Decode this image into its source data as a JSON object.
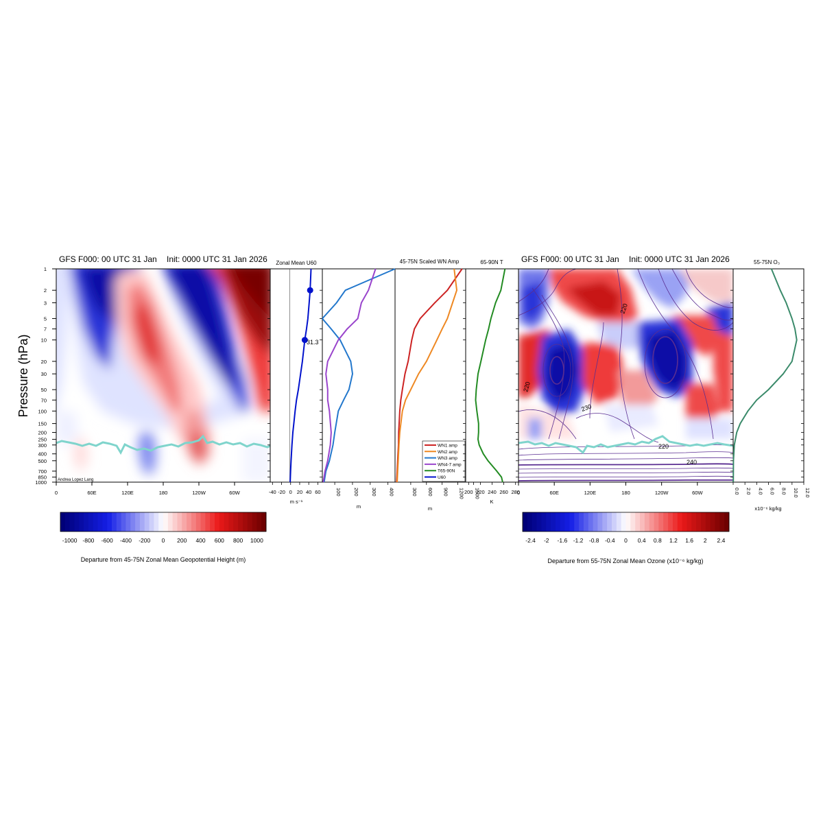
{
  "left_title_left": "GFS F000: 00 UTC 31 Jan",
  "left_title_right": "Init: 0000 UTC 31 Jan 2026",
  "right_title_left": "GFS F000: 00 UTC 31 Jan",
  "right_title_right": "Init: 0000 UTC 31 Jan 2026",
  "y_axis_label": "Pressure (hPa)",
  "credit": "Andrea Lopez Lang",
  "pressure_ticks": [
    "1",
    "2",
    "3",
    "5",
    "7",
    "10",
    "20",
    "30",
    "50",
    "70",
    "100",
    "150",
    "200",
    "250",
    "300",
    "400",
    "500",
    "700",
    "850",
    "1000"
  ],
  "lon_ticks": [
    "0",
    "60E",
    "120E",
    "180",
    "120W",
    "60W"
  ],
  "colors": {
    "u60": "#0011cc",
    "t65": "#228b22",
    "ozone": "#3a8a6a",
    "tropopause": "#7fd4cc",
    "contour": "#5a2d91"
  },
  "chart_data": [
    {
      "type": "heatmap",
      "name": "geopotential-height-departure",
      "colorbar_label": "Departure from 45-75N Zonal Mean Geopotential Height (m)",
      "colorbar_ticks": [
        "-1000",
        "-800",
        "-600",
        "-400",
        "-200",
        "0",
        "200",
        "400",
        "600",
        "800",
        "1000"
      ],
      "value_range": [
        -1100,
        1100
      ],
      "x_range": [
        "0",
        "360"
      ],
      "y_range_hPa": [
        1000,
        1
      ]
    },
    {
      "type": "line",
      "name": "zonal-mean-u60",
      "title": "Zonal Mean U60",
      "xlabel": "m s⁻¹",
      "x_ticks": [
        "-40",
        "-20",
        "0",
        "20",
        "40",
        "60"
      ],
      "xlim": [
        -45,
        70
      ],
      "pressure": [
        1,
        2,
        3,
        5,
        7,
        10,
        20,
        30,
        50,
        70,
        100,
        150,
        200,
        300,
        500,
        700,
        1000
      ],
      "values": [
        45,
        43,
        41,
        38,
        35,
        31.3,
        26,
        22,
        17,
        13,
        10,
        7,
        5,
        3,
        1,
        0,
        -1
      ],
      "markers": [
        {
          "pressure": 2,
          "value": 43
        },
        {
          "pressure": 10,
          "value": 31.3
        }
      ],
      "annotation": "31.3"
    },
    {
      "type": "line",
      "name": "wavenumber-amplitudes",
      "title": "45-75N Scaled WN Amp",
      "xlabel_left": "m",
      "xlabel_right": "m",
      "x_ticks_left": [
        "100",
        "200",
        "300",
        "400"
      ],
      "x_ticks_right": [
        "300",
        "600",
        "900",
        "1200",
        "1500"
      ],
      "legend_position": "bottom-right",
      "series": [
        {
          "name": "WN1 amp",
          "color": "#cc2222",
          "axis": "right",
          "pressure": [
            1,
            2,
            3,
            5,
            7,
            10,
            20,
            30,
            50,
            70,
            100,
            200,
            300,
            500,
            700,
            1000
          ],
          "values": [
            1280,
            1000,
            760,
            480,
            370,
            320,
            250,
            190,
            140,
            110,
            90,
            70,
            65,
            50,
            40,
            30
          ]
        },
        {
          "name": "WN2 amp",
          "color": "#ee8822",
          "axis": "right",
          "pressure": [
            1,
            2,
            3,
            5,
            7,
            10,
            20,
            30,
            50,
            70,
            100,
            200,
            300,
            500,
            700,
            1000
          ],
          "values": [
            1130,
            1180,
            1100,
            1000,
            900,
            800,
            600,
            450,
            300,
            200,
            140,
            90,
            75,
            60,
            50,
            40
          ]
        },
        {
          "name": "WN3 amp",
          "color": "#2277cc",
          "axis": "left",
          "pressure": [
            1,
            2,
            3,
            5,
            7,
            10,
            20,
            30,
            50,
            70,
            100,
            200,
            300,
            500,
            700,
            1000
          ],
          "values": [
            440,
            160,
            110,
            30,
            80,
            130,
            190,
            200,
            180,
            150,
            120,
            100,
            90,
            70,
            50,
            40
          ]
        },
        {
          "name": "WN4-7 amp",
          "color": "#9944cc",
          "axis": "left",
          "pressure": [
            1,
            2,
            3,
            5,
            7,
            10,
            20,
            30,
            50,
            70,
            100,
            200,
            300,
            500,
            700,
            1000
          ],
          "values": [
            330,
            290,
            250,
            230,
            170,
            120,
            60,
            50,
            60,
            60,
            70,
            80,
            75,
            60,
            45,
            35
          ]
        },
        {
          "name": "T65-90N",
          "color": "#228b22",
          "axis": "none",
          "pressure": [],
          "values": []
        },
        {
          "name": "U60",
          "color": "#0011cc",
          "axis": "none",
          "pressure": [],
          "values": []
        }
      ]
    },
    {
      "type": "line",
      "name": "polar-cap-temperature",
      "title": "65-90N T",
      "xlabel": "K",
      "x_ticks": [
        "200",
        "220",
        "240",
        "260",
        "280"
      ],
      "xlim": [
        195,
        285
      ],
      "pressure": [
        1,
        2,
        3,
        5,
        7,
        10,
        20,
        30,
        50,
        70,
        100,
        150,
        200,
        250,
        300,
        400,
        500,
        700,
        850,
        1000
      ],
      "values": [
        262,
        255,
        246,
        238,
        234,
        229,
        221,
        216,
        213,
        212,
        214,
        217,
        217,
        216,
        218,
        225,
        233,
        248,
        256,
        258
      ]
    },
    {
      "type": "heatmap",
      "name": "ozone-departure",
      "colorbar_label": "Departure from 55-75N Zonal Mean Ozone (x10⁻⁶ kg/kg)",
      "colorbar_ticks": [
        "-2.4",
        "-2",
        "-1.6",
        "-1.2",
        "-0.8",
        "-0.4",
        "0",
        "0.4",
        "0.8",
        "1.2",
        "1.6",
        "2",
        "2.4"
      ],
      "value_range": [
        -2.6,
        2.6
      ],
      "contour_labels": [
        "220",
        "220",
        "230",
        "220",
        "240"
      ]
    },
    {
      "type": "line",
      "name": "ozone-profile",
      "title": "55-75N O₃",
      "xlabel": "x10⁻⁶ kg/kg",
      "x_ticks": [
        "0.0",
        "2.0",
        "4.0",
        "6.0",
        "8.0",
        "10.0",
        "12.0"
      ],
      "xlim": [
        0,
        12
      ],
      "pressure": [
        1,
        2,
        3,
        5,
        7,
        10,
        20,
        30,
        50,
        70,
        100,
        150,
        200,
        300,
        500,
        1000
      ],
      "values": [
        6.5,
        8.0,
        9.0,
        10.0,
        10.5,
        10.8,
        10.0,
        8.5,
        6.0,
        4.0,
        2.5,
        1.2,
        0.6,
        0.2,
        0.05,
        0.02
      ]
    }
  ]
}
